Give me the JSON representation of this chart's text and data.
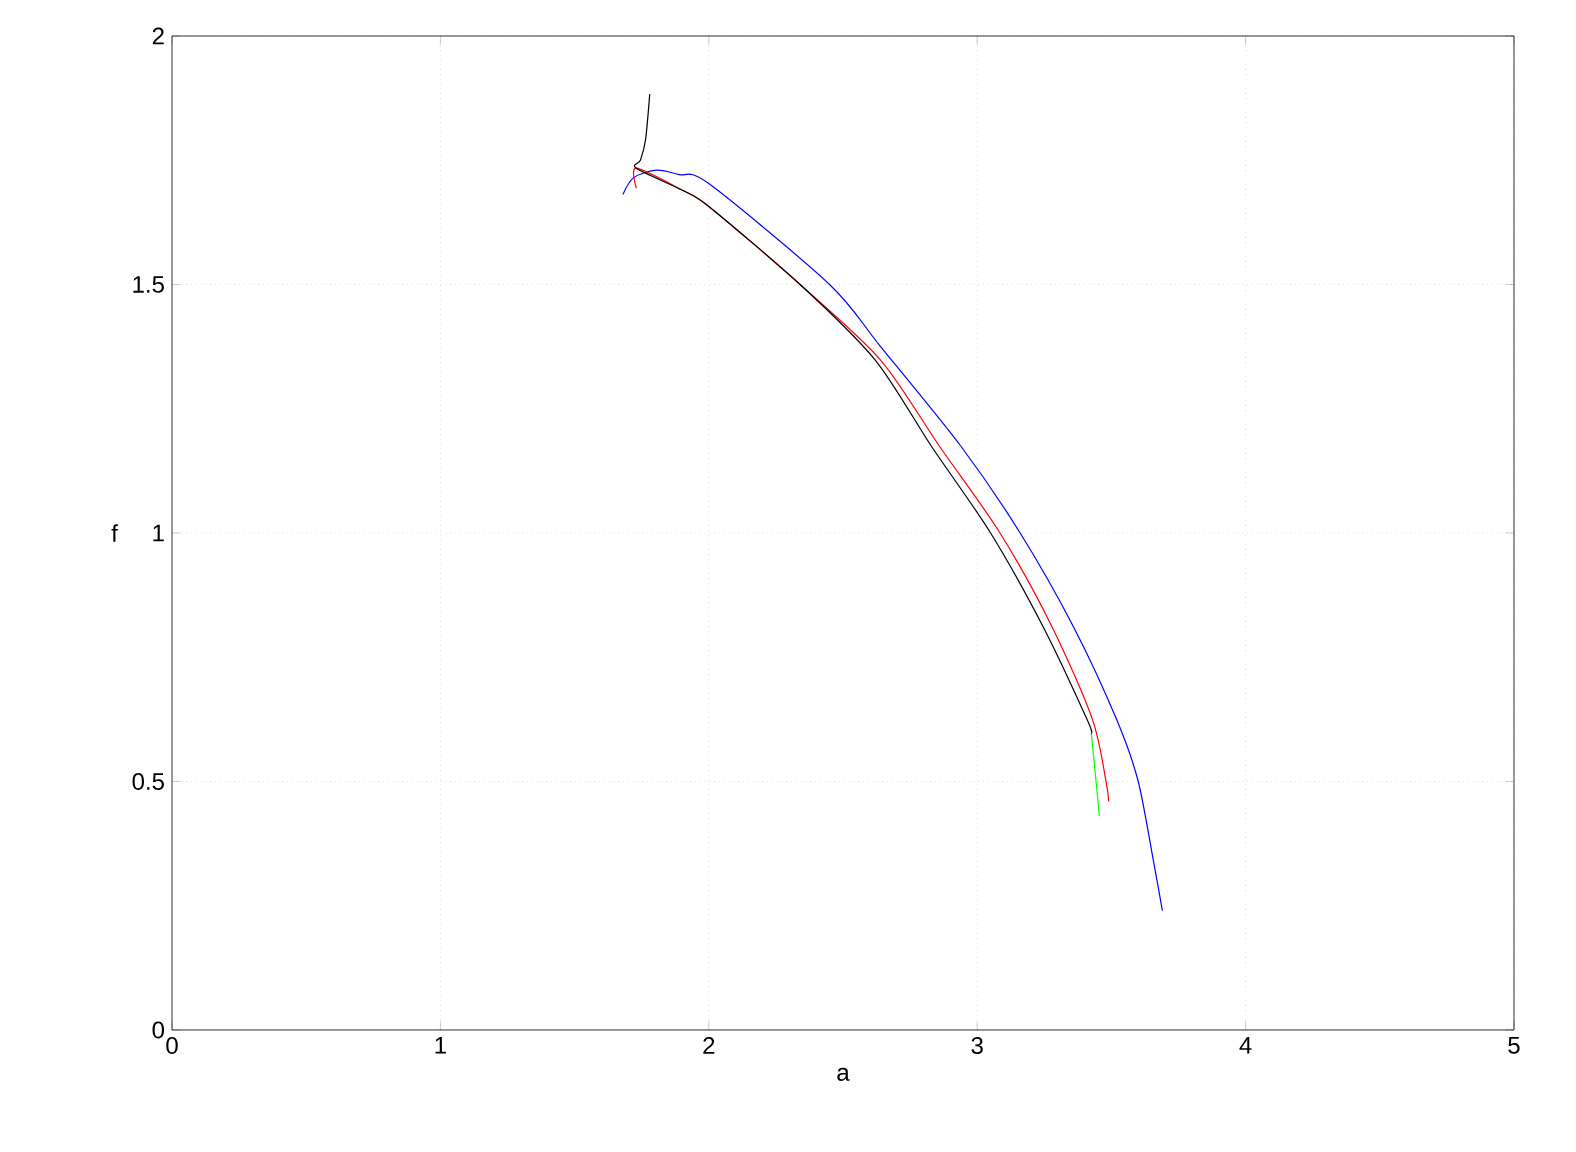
{
  "chart_data": {
    "type": "line",
    "xlabel": "a",
    "ylabel": "f",
    "xlim": [
      0,
      5
    ],
    "ylim": [
      0,
      2
    ],
    "xticks": [
      0,
      1,
      2,
      3,
      4,
      5
    ],
    "yticks": [
      0,
      0.5,
      1,
      1.5,
      2
    ],
    "grid": true,
    "marker": "none",
    "line_style": "solid",
    "series": [
      {
        "color": "#0000ff",
        "x": [
          1.68,
          1.72,
          1.805,
          1.89,
          2.0,
          2.45,
          2.64,
          2.94,
          3.16,
          3.36,
          3.52,
          3.6,
          3.66,
          3.69
        ],
        "values": [
          1.681,
          1.715,
          1.73,
          1.721,
          1.703,
          1.5,
          1.375,
          1.174,
          1.0,
          0.81,
          0.624,
          0.5,
          0.33,
          0.24
        ]
      },
      {
        "color": "#ff0000",
        "x": [
          1.73,
          1.73,
          1.9,
          2.0,
          2.34,
          2.64,
          2.86,
          3.085,
          3.28,
          3.43,
          3.48,
          3.49
        ],
        "values": [
          1.694,
          1.734,
          1.69,
          1.657,
          1.5,
          1.348,
          1.174,
          1.0,
          0.81,
          0.624,
          0.5,
          0.46
        ]
      },
      {
        "color": "#00ff00",
        "x": [
          3.425,
          3.443,
          3.455
        ],
        "values": [
          0.597,
          0.5,
          0.43
        ]
      },
      {
        "color": "#000000",
        "x": [
          1.78,
          1.764,
          1.745,
          1.73,
          1.9,
          2.0,
          2.34,
          2.62,
          2.83,
          3.05,
          3.247,
          3.41,
          3.425
        ],
        "values": [
          1.883,
          1.79,
          1.75,
          1.734,
          1.69,
          1.657,
          1.5,
          1.348,
          1.174,
          1.0,
          0.81,
          0.624,
          0.597
        ]
      }
    ]
  }
}
